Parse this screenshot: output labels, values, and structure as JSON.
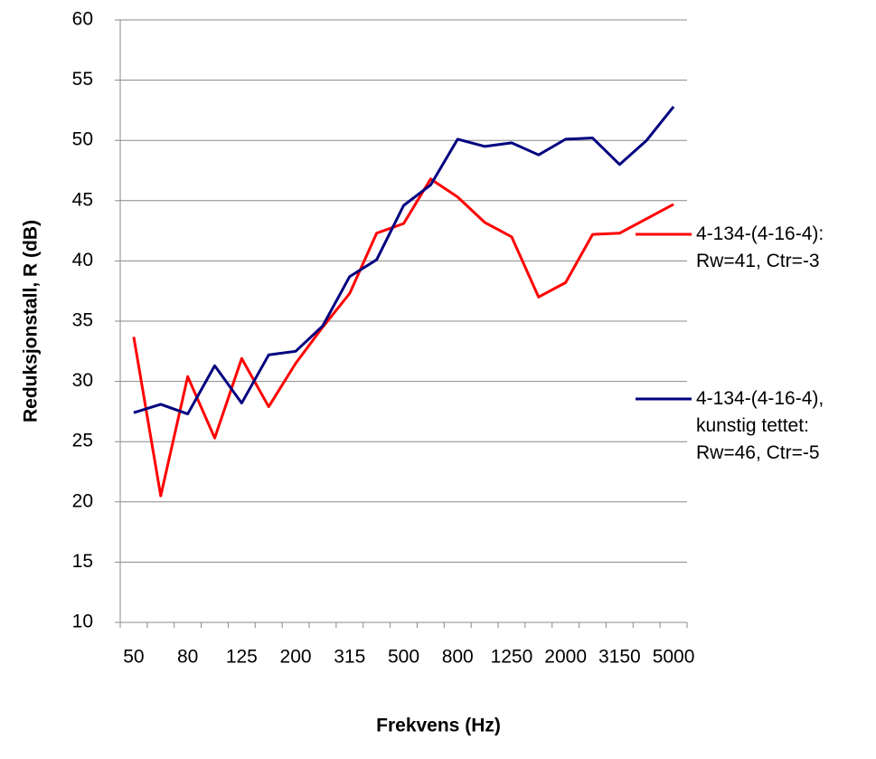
{
  "chart_data": {
    "type": "line",
    "y_label": "Reduksjonstall, R (dB)",
    "x_label": "Frekvens (Hz)",
    "categories": [
      "50",
      null,
      "80",
      null,
      "125",
      null,
      "200",
      null,
      "315",
      null,
      "500",
      null,
      "800",
      null,
      "1250",
      null,
      "2000",
      null,
      "3150",
      null,
      "5000"
    ],
    "series": [
      {
        "name": "4-134-(4-16-4): Rw=41, Ctr=-3",
        "color": "#ff0000",
        "values": [
          33.7,
          20.5,
          30.4,
          25.3,
          31.9,
          27.9,
          31.5,
          34.5,
          37.3,
          42.3,
          43.1,
          46.8,
          45.3,
          43.2,
          42.0,
          37.0,
          38.2,
          42.2,
          42.3,
          43.5,
          44.7
        ]
      },
      {
        "name": "4-134-(4-16-4), kunstig tettet: Rw=46, Ctr=-5",
        "color": "#000080",
        "values": [
          27.4,
          28.1,
          27.3,
          31.3,
          28.2,
          32.2,
          32.5,
          34.6,
          38.7,
          40.1,
          44.6,
          46.3,
          50.1,
          49.5,
          49.8,
          48.8,
          50.1,
          50.2,
          48.0,
          50.0,
          52.8
        ]
      }
    ],
    "ylim": [
      10,
      60
    ],
    "yticks": [
      10,
      15,
      20,
      25,
      30,
      35,
      40,
      45,
      50,
      55,
      60
    ],
    "grid": true,
    "legend": "right"
  }
}
